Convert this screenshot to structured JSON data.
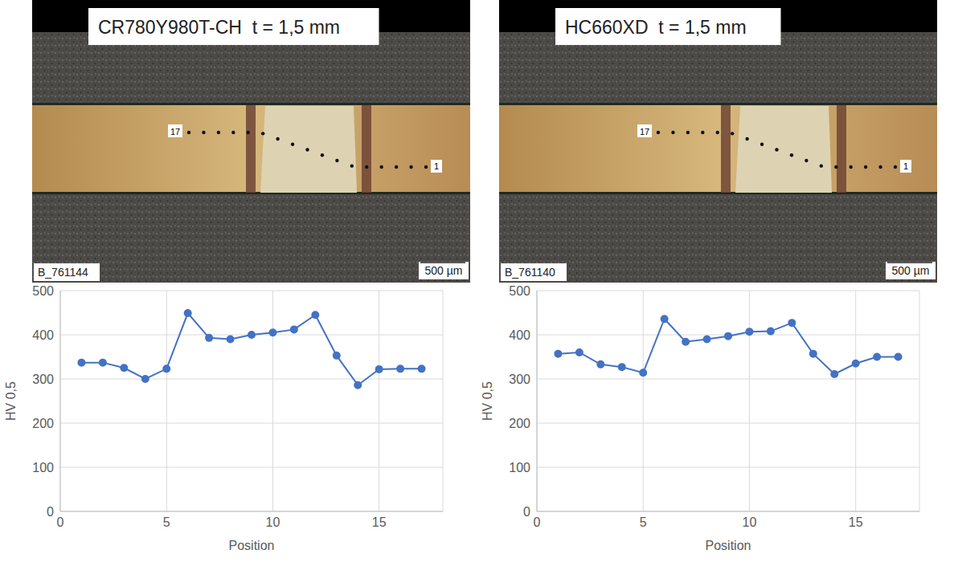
{
  "chart_data": [
    {
      "type": "line",
      "title": "CR780Y980T-CH  t = 1,5 mm",
      "x_label": "Position",
      "y_label": "HV 0,5",
      "x": [
        1,
        2,
        3,
        4,
        5,
        6,
        7,
        8,
        9,
        10,
        11,
        12,
        13,
        14,
        15,
        16,
        17
      ],
      "values": [
        337,
        337,
        325,
        300,
        323,
        449,
        393,
        390,
        400,
        405,
        412,
        445,
        353,
        286,
        322,
        323,
        323
      ],
      "color": "#4472c4",
      "marker": "circle",
      "xlim": [
        0,
        18
      ],
      "xticks": [
        0,
        5,
        10,
        15
      ],
      "ylim": [
        0,
        500
      ],
      "yticks": [
        0,
        100,
        200,
        300,
        400,
        500
      ],
      "grid": true
    },
    {
      "type": "line",
      "title": "HC660XD  t = 1,5 mm",
      "x_label": "Position",
      "y_label": "HV 0,5",
      "x": [
        1,
        2,
        3,
        4,
        5,
        6,
        7,
        8,
        9,
        10,
        11,
        12,
        13,
        14,
        15,
        16,
        17
      ],
      "values": [
        357,
        360,
        333,
        327,
        314,
        436,
        384,
        390,
        397,
        407,
        408,
        427,
        357,
        311,
        335,
        350,
        350
      ],
      "color": "#4472c4",
      "marker": "circle",
      "xlim": [
        0,
        18
      ],
      "xticks": [
        0,
        5,
        10,
        15
      ],
      "ylim": [
        0,
        500
      ],
      "yticks": [
        0,
        100,
        200,
        300,
        400,
        500
      ],
      "grid": true
    }
  ],
  "images": [
    {
      "id": "B_761144",
      "scale_bar": "500 µm",
      "first_point_label": "1",
      "last_point_label": "17"
    },
    {
      "id": "B_761140",
      "scale_bar": "500 µm",
      "first_point_label": "1",
      "last_point_label": "17"
    }
  ]
}
